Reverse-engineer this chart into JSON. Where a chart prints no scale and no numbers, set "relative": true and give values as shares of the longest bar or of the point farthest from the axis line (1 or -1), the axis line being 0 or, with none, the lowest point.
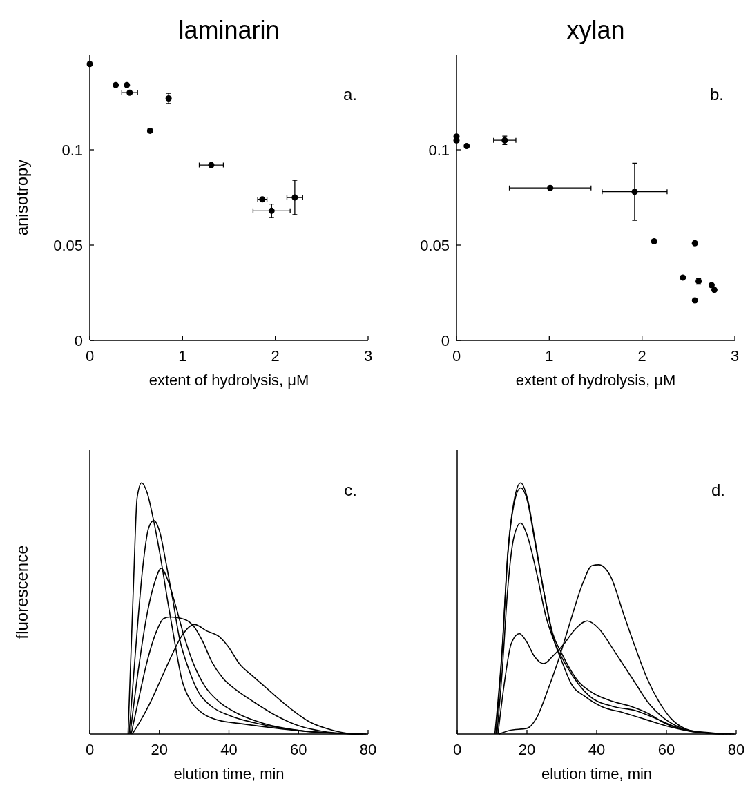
{
  "chart_data": [
    {
      "type": "scatter",
      "title": "laminarin",
      "xlabel": "extent of hydrolysis, μM",
      "ylabel": "anisotropy",
      "xlim": [
        0,
        3
      ],
      "ylim": [
        0,
        0.15
      ],
      "xticks": [
        0,
        1,
        2,
        3
      ],
      "yticks": [
        0,
        0.05,
        0.1
      ],
      "marker": "circle",
      "annotations": [
        "a."
      ],
      "series": [
        {
          "color": "#000000",
          "x": [
            0,
            0.28,
            0.4,
            0.43,
            0.65,
            0.85,
            1.31,
            1.86,
            1.96,
            2.21
          ],
          "values": [
            0.145,
            0.134,
            0.134,
            0.13,
            0.11,
            0.127,
            0.092,
            0.074,
            0.068,
            0.075
          ],
          "errors": [
            null,
            null,
            null,
            null,
            null,
            0.0027,
            null,
            null,
            0.0035,
            0.009
          ],
          "xerrors": [
            null,
            null,
            null,
            0.085,
            null,
            null,
            0.13,
            0.05,
            0.2,
            0.085
          ]
        }
      ]
    },
    {
      "type": "scatter",
      "title": "xylan",
      "xlabel": "extent of hydrolysis, μM",
      "xlim": [
        0,
        3
      ],
      "ylim": [
        0,
        0.15
      ],
      "xticks": [
        0,
        1,
        2,
        3
      ],
      "yticks": [
        0,
        0.05,
        0.1
      ],
      "marker": "circle",
      "annotations": [
        "b."
      ],
      "series": [
        {
          "color": "#000000",
          "x": [
            0,
            0,
            0.11,
            0.52,
            1.01,
            1.92,
            2.13,
            2.57,
            2.44,
            2.61,
            2.57,
            2.75,
            2.78
          ],
          "values": [
            0.107,
            0.105,
            0.102,
            0.105,
            0.08,
            0.078,
            0.052,
            0.051,
            0.033,
            0.031,
            0.021,
            0.029,
            0.0265
          ],
          "errors": [
            null,
            null,
            null,
            0.0022,
            null,
            0.015,
            null,
            null,
            null,
            0.0015,
            null,
            null,
            null
          ],
          "xerrors": [
            null,
            null,
            null,
            0.12,
            0.44,
            0.35,
            null,
            null,
            null,
            null,
            null,
            null,
            null
          ]
        }
      ]
    },
    {
      "type": "line",
      "xlabel": "elution time, min",
      "ylabel": "fluorescence",
      "xlim": [
        0,
        80
      ],
      "xticks": [
        0,
        20,
        40,
        60,
        80
      ],
      "relative": true,
      "tick_labels": "x",
      "annotations": [
        "c."
      ],
      "series": [
        {
          "color": "#000000",
          "x": [
            11.0,
            12.6,
            13.6,
            14.9,
            16.5,
            18.2,
            20.5,
            22.5,
            24.5,
            26.4,
            29.1,
            32.4,
            37,
            43.6,
            53.6,
            63.5,
            73.4,
            79.5
          ],
          "values": [
            0,
            0.61,
            0.94,
            1,
            0.96,
            0.86,
            0.69,
            0.52,
            0.36,
            0.22,
            0.13,
            0.083,
            0.055,
            0.041,
            0.023,
            0.009,
            0.002,
            0
          ]
        },
        {
          "color": "#000000",
          "x": [
            11.3,
            13.2,
            15.2,
            16.9,
            18.4,
            20.2,
            21.8,
            23.8,
            25.8,
            28.4,
            31.1,
            35,
            40.3,
            46.9,
            56.9,
            66.8,
            78.5
          ],
          "values": [
            0,
            0.34,
            0.66,
            0.82,
            0.85,
            0.8,
            0.69,
            0.54,
            0.38,
            0.26,
            0.17,
            0.11,
            0.073,
            0.046,
            0.02,
            0.006,
            0
          ]
        },
        {
          "color": "#000000",
          "x": [
            11.6,
            13.9,
            16.5,
            18.8,
            20.5,
            22.5,
            24.5,
            27.1,
            29.8,
            33.1,
            37,
            42.3,
            50.2,
            60.2,
            70.1,
            77.5
          ],
          "values": [
            0,
            0.25,
            0.48,
            0.61,
            0.66,
            0.61,
            0.52,
            0.39,
            0.28,
            0.19,
            0.13,
            0.083,
            0.041,
            0.014,
            0.004,
            0
          ]
        },
        {
          "color": "#000000",
          "x": [
            11.9,
            13.9,
            16.5,
            19.2,
            21.2,
            23.1,
            27.1,
            29.8,
            32.4,
            35,
            38.4,
            41.7,
            46.9,
            53.6,
            60.2,
            66.8,
            76.5
          ],
          "values": [
            0,
            0.13,
            0.29,
            0.41,
            0.46,
            0.466,
            0.457,
            0.43,
            0.37,
            0.29,
            0.22,
            0.18,
            0.13,
            0.073,
            0.032,
            0.011,
            0
          ]
        },
        {
          "color": "#000000",
          "x": [
            12.2,
            13.9,
            17.2,
            20.5,
            23.8,
            26.4,
            30.1,
            33.7,
            37,
            39.7,
            43,
            46.9,
            50.2,
            56.9,
            63.5,
            70.1,
            75.5
          ],
          "values": [
            0,
            0.037,
            0.12,
            0.22,
            0.32,
            0.39,
            0.436,
            0.41,
            0.39,
            0.35,
            0.28,
            0.23,
            0.19,
            0.11,
            0.046,
            0.014,
            0
          ]
        }
      ]
    },
    {
      "type": "line",
      "xlabel": "elution time, min",
      "xlim": [
        0,
        80
      ],
      "xticks": [
        0,
        20,
        40,
        60,
        80
      ],
      "relative": true,
      "tick_labels": "x",
      "annotations": [
        "d."
      ],
      "series": [
        {
          "color": "#000000",
          "x": [
            10.8,
            12.9,
            14.5,
            16.2,
            18.2,
            20.1,
            22.1,
            24.8,
            27.4,
            30,
            32.7,
            36.6,
            41.3,
            47.9,
            54.5,
            61.1,
            67.7,
            79.5
          ],
          "values": [
            0,
            0.34,
            0.72,
            0.92,
            1,
            0.94,
            0.79,
            0.57,
            0.39,
            0.29,
            0.2,
            0.15,
            0.11,
            0.084,
            0.056,
            0.028,
            0.009,
            0
          ]
        },
        {
          "color": "#000000",
          "x": [
            11.1,
            12.9,
            14.5,
            16.2,
            18.2,
            20.1,
            22.1,
            24.8,
            27.4,
            30,
            34.7,
            39.3,
            44.6,
            49.8,
            54.5,
            59.7,
            64.4,
            78.5
          ],
          "values": [
            0,
            0.33,
            0.71,
            0.91,
            0.98,
            0.93,
            0.78,
            0.57,
            0.4,
            0.32,
            0.21,
            0.16,
            0.13,
            0.11,
            0.084,
            0.042,
            0.019,
            0
          ]
        },
        {
          "color": "#000000",
          "x": [
            11.4,
            12.9,
            14.5,
            16.2,
            18.2,
            20.1,
            22.8,
            25.4,
            28.1,
            31.4,
            34.7,
            38,
            44.6,
            51.2,
            56.4,
            61.7,
            67.7,
            77.5
          ],
          "values": [
            0,
            0.25,
            0.58,
            0.78,
            0.84,
            0.79,
            0.64,
            0.47,
            0.36,
            0.27,
            0.2,
            0.15,
            0.11,
            0.093,
            0.065,
            0.033,
            0.009,
            0
          ]
        },
        {
          "color": "#000000",
          "x": [
            11.7,
            13.5,
            15.5,
            17.8,
            19.8,
            22.1,
            24.8,
            27.4,
            30.7,
            34,
            37.3,
            40.6,
            44.6,
            47.9,
            51.2,
            54.5,
            59.1,
            64.4,
            71,
            76.5
          ],
          "values": [
            0,
            0.2,
            0.36,
            0.4,
            0.37,
            0.31,
            0.28,
            0.31,
            0.36,
            0.42,
            0.45,
            0.42,
            0.34,
            0.27,
            0.2,
            0.13,
            0.065,
            0.023,
            0.005,
            0
          ]
        },
        {
          "color": "#000000",
          "x": [
            12.0,
            14.9,
            20.1,
            22.8,
            26.1,
            29.4,
            32.7,
            36,
            38.6,
            40.6,
            43.9,
            47.9,
            51.2,
            54.5,
            57.8,
            61.1,
            65.7,
            71,
            75.5
          ],
          "values": [
            0,
            0.014,
            0.023,
            0.065,
            0.18,
            0.31,
            0.46,
            0.6,
            0.67,
            0.674,
            0.63,
            0.47,
            0.34,
            0.22,
            0.13,
            0.065,
            0.019,
            0.004,
            0
          ]
        }
      ]
    }
  ]
}
